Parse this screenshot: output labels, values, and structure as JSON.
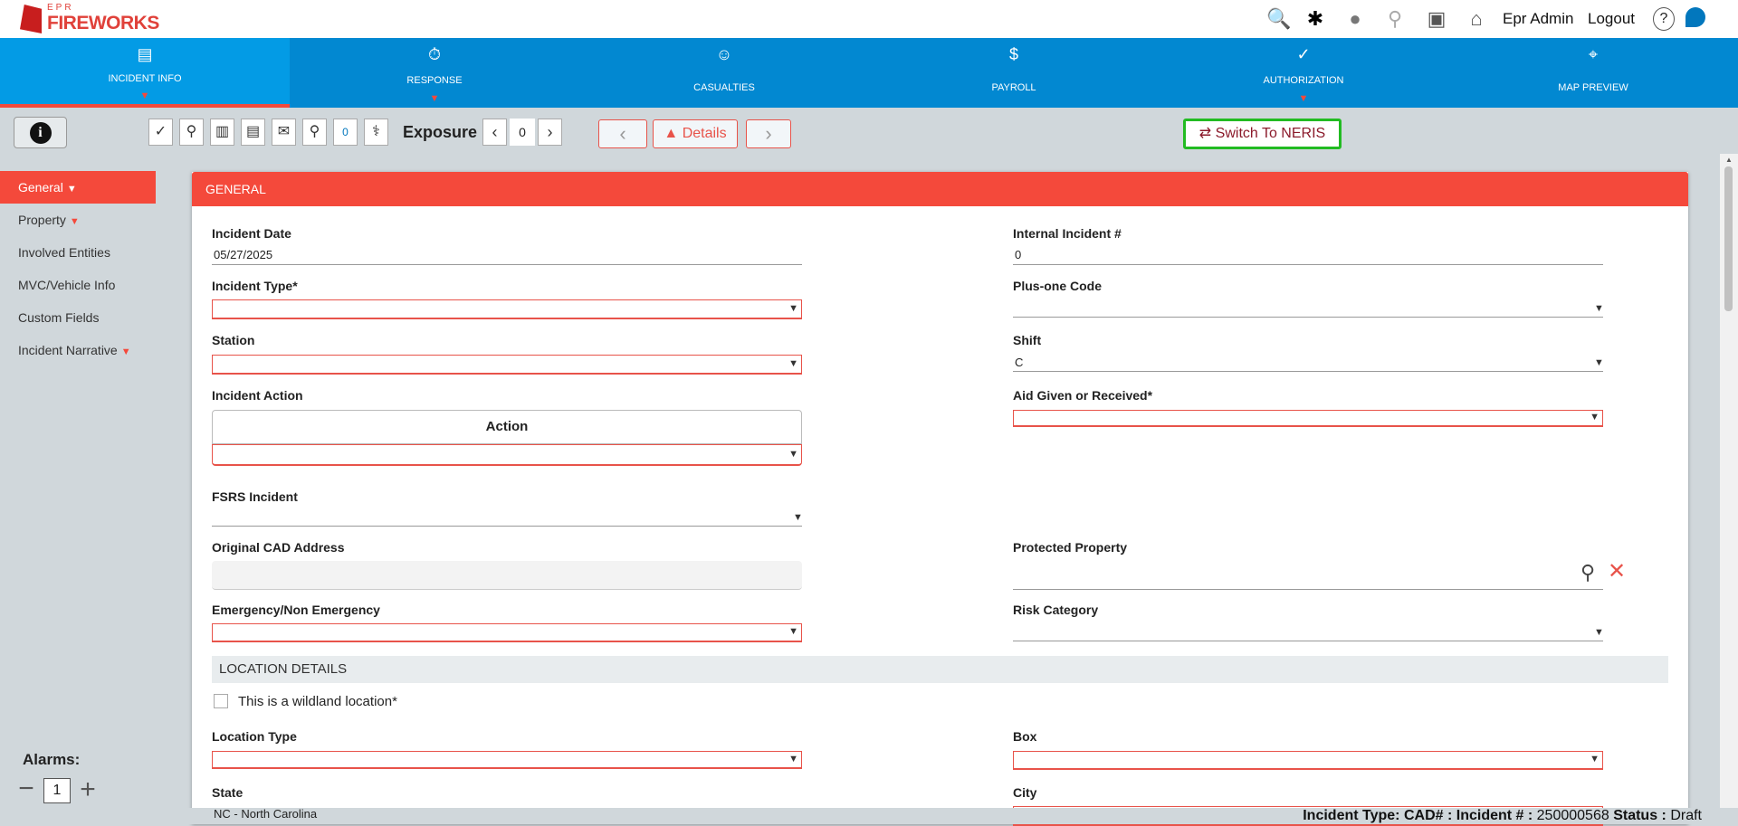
{
  "app": {
    "logo_small": "EPR",
    "logo_main": "FIREWORKS",
    "user": "Epr Admin",
    "logout": "Logout"
  },
  "top_icons": [
    "document-search-icon",
    "star-of-life-icon",
    "bell-icon",
    "search-icon",
    "presentation-icon",
    "home-icon",
    "help-icon",
    "chat-icon"
  ],
  "nav": [
    {
      "label": "INCIDENT INFO",
      "icon": "notepad-icon",
      "flag": true,
      "active": true
    },
    {
      "label": "RESPONSE",
      "icon": "stopwatch-icon",
      "flag": true
    },
    {
      "label": "CASUALTIES",
      "icon": "person-icon",
      "flag": false
    },
    {
      "label": "PAYROLL",
      "icon": "money-hand-icon",
      "flag": false
    },
    {
      "label": "AUTHORIZATION",
      "icon": "check-circle-icon",
      "flag": true
    },
    {
      "label": "MAP PREVIEW",
      "icon": "map-pin-icon",
      "flag": false
    }
  ],
  "toolbar": {
    "exposure_label": "Exposure :",
    "exposure_value": "0",
    "details": "Details",
    "switch": "Switch To NERIS",
    "comment_count": "0"
  },
  "sidebar": [
    {
      "label": "General",
      "flag": true,
      "active": true
    },
    {
      "label": "Property",
      "flag": true
    },
    {
      "label": "Involved Entities"
    },
    {
      "label": "MVC/Vehicle Info"
    },
    {
      "label": "Custom Fields"
    },
    {
      "label": "Incident Narrative",
      "flag": true
    }
  ],
  "alarms": {
    "label": "Alarms:",
    "value": "1"
  },
  "form": {
    "section": "GENERAL",
    "incident_date": {
      "label": "Incident Date",
      "value": "05/27/2025"
    },
    "internal_incident": {
      "label": "Internal Incident #",
      "value": "0"
    },
    "incident_type": {
      "label": "Incident Type*",
      "value": ""
    },
    "plus_one": {
      "label": "Plus-one Code",
      "value": ""
    },
    "station": {
      "label": "Station",
      "value": ""
    },
    "shift": {
      "label": "Shift",
      "value": "C"
    },
    "incident_action": {
      "label": "Incident Action",
      "column": "Action"
    },
    "aid": {
      "label": "Aid Given or Received*",
      "value": ""
    },
    "fsrs": {
      "label": "FSRS Incident",
      "value": ""
    },
    "cad_address": {
      "label": "Original CAD Address",
      "value": ""
    },
    "protected_property": {
      "label": "Protected Property",
      "value": ""
    },
    "emergency": {
      "label": "Emergency/Non Emergency",
      "value": ""
    },
    "risk": {
      "label": "Risk Category",
      "value": ""
    },
    "location_section": "LOCATION DETAILS",
    "wildland": {
      "label": "This is a wildland location*",
      "checked": false
    },
    "location_type": {
      "label": "Location Type",
      "value": ""
    },
    "box": {
      "label": "Box",
      "value": ""
    },
    "state": {
      "label": "State",
      "value": "NC - North Carolina"
    },
    "city": {
      "label": "City",
      "value": ""
    }
  },
  "status": {
    "type_label": "Incident Type:",
    "cad_label": "CAD# :",
    "incident_label": "Incident # :",
    "incident_value": "250000568",
    "status_label": "Status :",
    "status_value": "Draft"
  },
  "colors": {
    "nav": "#0288d1",
    "nav_active": "#039be5",
    "accent": "#f4493b",
    "switch_border": "#22bb22"
  }
}
